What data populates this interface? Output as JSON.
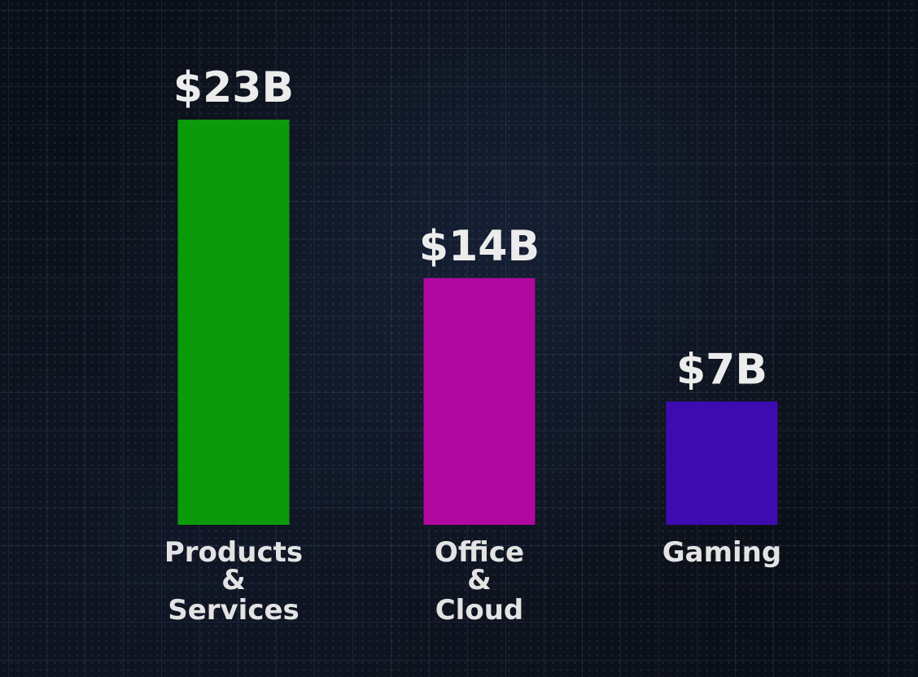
{
  "chart_data": {
    "type": "bar",
    "categories": [
      "Products & Services",
      "Office & Cloud",
      "Gaming"
    ],
    "category_lines": [
      [
        "Products",
        "&",
        "Services"
      ],
      [
        "Office",
        "&",
        "Cloud"
      ],
      [
        "Gaming"
      ]
    ],
    "values": [
      23,
      14,
      7
    ],
    "value_labels": [
      "$23B",
      "$14B",
      "$7B"
    ],
    "colors": [
      "#0a9a0a",
      "#b0079f",
      "#3d0cb0"
    ],
    "title": "",
    "xlabel": "",
    "ylabel": "",
    "ylim": [
      0,
      23
    ],
    "grid": true,
    "legend": "none",
    "background": "#0b0f17"
  }
}
